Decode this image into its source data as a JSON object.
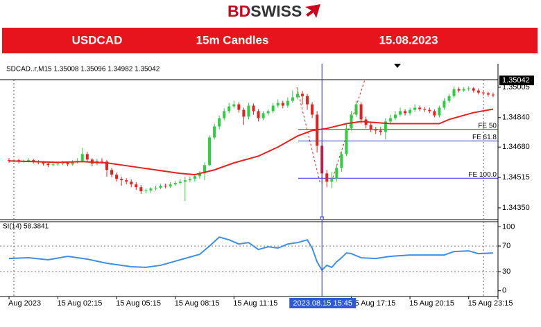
{
  "header": {
    "logo_part1": "BD",
    "logo_part2": "SWISS",
    "symbol": "USDCAD",
    "timeframe": "15m Candles",
    "date": "15.08.2023"
  },
  "chart_data": [
    {
      "type": "candlestick",
      "info": "SDCAD..r,M15  1.35008 1.35096 1.34982 1.35042",
      "up_color": "#2ecc40",
      "down_color": "#e8201c",
      "open": [
        1.34609,
        1.34605,
        1.34609,
        1.34601,
        1.34605,
        1.34609,
        1.34601,
        1.34597,
        1.3459,
        1.34582,
        1.34586,
        1.3459,
        1.34594,
        1.34586,
        1.34597,
        1.34605,
        1.34642,
        1.34612,
        1.3459,
        1.34605,
        1.34601,
        1.34556,
        1.3453,
        1.34507,
        1.345,
        1.34492,
        1.34477,
        1.34462,
        1.3444,
        1.34444,
        1.34455,
        1.34459,
        1.3447,
        1.34466,
        1.34477,
        1.34485,
        1.34492,
        1.345,
        1.34507,
        1.34522,
        1.34537,
        1.34582,
        1.34732,
        1.34792,
        1.34837,
        1.34875,
        1.34901,
        1.34912,
        1.34882,
        1.34845,
        1.34905,
        1.34875,
        1.34837,
        1.34864,
        1.34875,
        1.34905,
        1.3492,
        1.34905,
        1.34931,
        1.3495,
        1.34969,
        1.34957,
        1.34912,
        1.34856,
        1.34687,
        1.34537,
        1.34492,
        1.34507,
        1.34567,
        1.34642,
        1.34781,
        1.34856,
        1.34912,
        1.3483,
        1.348,
        1.34777,
        1.3477,
        1.34762,
        1.34819,
        1.34837,
        1.34856,
        1.34875,
        1.34864,
        1.34882,
        1.34894,
        1.34886,
        1.34882,
        1.34875,
        1.34852,
        1.34894,
        1.34931,
        1.34957,
        1.34995,
        1.34987,
        1.34995,
        1.34999,
        1.34987,
        1.34976,
        1.34972,
        1.34965
      ],
      "high": [
        1.3462,
        1.34616,
        1.34616,
        1.34612,
        1.3462,
        1.34616,
        1.34609,
        1.34605,
        1.34597,
        1.34594,
        1.34601,
        1.34605,
        1.34601,
        1.34609,
        1.3462,
        1.34676,
        1.34654,
        1.3462,
        1.34616,
        1.3462,
        1.34609,
        1.34567,
        1.34541,
        1.34519,
        1.34511,
        1.34504,
        1.34489,
        1.34474,
        1.34455,
        1.34462,
        1.3447,
        1.34481,
        1.34481,
        1.34489,
        1.34496,
        1.34507,
        1.34519,
        1.34519,
        1.34534,
        1.34549,
        1.34597,
        1.34744,
        1.34807,
        1.34852,
        1.3489,
        1.3492,
        1.34931,
        1.34924,
        1.34894,
        1.3492,
        1.34916,
        1.34886,
        1.34875,
        1.34886,
        1.3492,
        1.34939,
        1.34931,
        1.3495,
        1.34987,
        1.34999,
        1.34984,
        1.34969,
        1.34924,
        1.34875,
        1.34706,
        1.34556,
        1.34545,
        1.34582,
        1.34657,
        1.34807,
        1.34875,
        1.34931,
        1.34924,
        1.34845,
        1.34815,
        1.34789,
        1.34789,
        1.34837,
        1.34856,
        1.34875,
        1.34894,
        1.34886,
        1.34894,
        1.34912,
        1.34905,
        1.34897,
        1.34894,
        1.34886,
        1.34905,
        1.34946,
        1.34969,
        1.3501,
        1.35006,
        1.35006,
        1.3501,
        1.35006,
        1.34999,
        1.34984,
        1.3498,
        1.34976
      ],
      "low": [
        1.34594,
        1.34597,
        1.3459,
        1.34594,
        1.34597,
        1.3459,
        1.34586,
        1.34579,
        1.34571,
        1.34575,
        1.34579,
        1.34582,
        1.34575,
        1.34579,
        1.3459,
        1.34597,
        1.34601,
        1.34575,
        1.34582,
        1.3459,
        1.34519,
        1.34515,
        1.34492,
        1.3447,
        1.34477,
        1.34462,
        1.34447,
        1.34425,
        1.34429,
        1.34432,
        1.34444,
        1.34451,
        1.34455,
        1.34459,
        1.3447,
        1.34477,
        1.34387,
        1.34489,
        1.34492,
        1.34507,
        1.345,
        1.34575,
        1.34721,
        1.34777,
        1.34826,
        1.34864,
        1.3489,
        1.34867,
        1.348,
        1.3483,
        1.34856,
        1.34819,
        1.34826,
        1.34852,
        1.34864,
        1.34894,
        1.3489,
        1.34894,
        1.3492,
        1.34939,
        1.34912,
        1.34882,
        1.34837,
        1.3465,
        1.34481,
        1.34462,
        1.34455,
        1.34492,
        1.34545,
        1.34631,
        1.3477,
        1.34845,
        1.34807,
        1.34781,
        1.34762,
        1.34751,
        1.34744,
        1.34721,
        1.34807,
        1.34826,
        1.34845,
        1.34852,
        1.34852,
        1.34871,
        1.34875,
        1.34871,
        1.34864,
        1.34841,
        1.34841,
        1.34882,
        1.3492,
        1.34946,
        1.34976,
        1.3498,
        1.34984,
        1.34976,
        1.34965,
        1.34961,
        1.34954,
        1.3495
      ],
      "close": [
        1.34605,
        1.34609,
        1.34601,
        1.34605,
        1.34609,
        1.34601,
        1.34597,
        1.3459,
        1.34582,
        1.34586,
        1.3459,
        1.34594,
        1.34586,
        1.34597,
        1.34605,
        1.34642,
        1.34612,
        1.3459,
        1.34605,
        1.34601,
        1.34556,
        1.3453,
        1.34507,
        1.345,
        1.34492,
        1.34477,
        1.34462,
        1.3444,
        1.34444,
        1.34455,
        1.34459,
        1.3447,
        1.34466,
        1.34477,
        1.34485,
        1.34492,
        1.345,
        1.34507,
        1.34522,
        1.34537,
        1.34582,
        1.34732,
        1.34792,
        1.34837,
        1.34875,
        1.34901,
        1.34912,
        1.34882,
        1.34845,
        1.34905,
        1.34875,
        1.34837,
        1.34864,
        1.34875,
        1.34905,
        1.3492,
        1.34905,
        1.34931,
        1.3495,
        1.34969,
        1.34957,
        1.34912,
        1.34856,
        1.34687,
        1.34537,
        1.34492,
        1.34507,
        1.34567,
        1.34642,
        1.34781,
        1.34856,
        1.34912,
        1.3483,
        1.348,
        1.34777,
        1.3477,
        1.34762,
        1.34819,
        1.34837,
        1.34856,
        1.34875,
        1.34864,
        1.34882,
        1.34894,
        1.34886,
        1.34882,
        1.34875,
        1.34852,
        1.34894,
        1.34931,
        1.34957,
        1.34995,
        1.34987,
        1.34995,
        1.34999,
        1.34987,
        1.34976,
        1.34972,
        1.34965,
        1.34961
      ],
      "ma": {
        "color": "#e8201c",
        "x": [
          0,
          5,
          10,
          15,
          20,
          25,
          30,
          35,
          38,
          42,
          46,
          51,
          55,
          59,
          62,
          65,
          69,
          72,
          78,
          83,
          88,
          90,
          95,
          99
        ],
        "values": [
          1.34605,
          1.34601,
          1.34597,
          1.34601,
          1.34594,
          1.34575,
          1.34556,
          1.34537,
          1.3453,
          1.34556,
          1.34594,
          1.34631,
          1.3468,
          1.3474,
          1.3477,
          1.34781,
          1.34807,
          1.34819,
          1.34807,
          1.34807,
          1.34807,
          1.3483,
          1.34867,
          1.34886
        ]
      },
      "levels": [
        {
          "label": "FE 50",
          "value": 1.34776
        },
        {
          "label": "FE 61.8",
          "value": 1.34713
        },
        {
          "label": "FE 100.0",
          "value": 1.34511
        }
      ],
      "level_color": "#2b2bdc",
      "current_price": 1.35042,
      "ylim": [
        1.34286,
        1.35046
      ],
      "yticks": [
        1.35005,
        {
          "value": 1.3484,
          "label": "1.34840"
        },
        {
          "value": 1.3468,
          "label": "1.34680"
        },
        1.34515,
        {
          "value": 1.3435,
          "label": "1.34350"
        }
      ],
      "xticks": [
        {
          "value": 0,
          "label": "Aug 2023"
        },
        {
          "value": 10,
          "label": "15 Aug 02:15"
        },
        {
          "value": 22,
          "label": "15 Aug 05:15"
        },
        {
          "value": 34,
          "label": "15 Aug 08:15"
        },
        {
          "value": 46,
          "label": "15 Aug 11:15"
        },
        {
          "value": 70,
          "label": "15 Aug 17:15"
        },
        {
          "value": 82,
          "label": "15 Aug 20:15"
        },
        {
          "value": 94,
          "label": "15 Aug 23:15"
        }
      ],
      "crosshair": {
        "x": 64,
        "label": "2023.08.15 15:45"
      }
    },
    {
      "type": "line",
      "label": "SI(14) 58.3841",
      "color": "#3b8fe8",
      "x": [
        0,
        4,
        8,
        12,
        16,
        20,
        25,
        28,
        31,
        35,
        39,
        41,
        43,
        45,
        47,
        49,
        51,
        53,
        55,
        57,
        59,
        61,
        62,
        63,
        64,
        65,
        66,
        67,
        68,
        69,
        70,
        72,
        75,
        78,
        82,
        86,
        89,
        91,
        94,
        96,
        99
      ],
      "values": [
        50.5,
        51.6,
        48.4,
        53.8,
        49.5,
        43.0,
        37.6,
        36.6,
        39.8,
        48.4,
        57.0,
        69.9,
        83.9,
        79.6,
        73.1,
        75.3,
        64.5,
        68.8,
        66.7,
        73.1,
        75.3,
        79.6,
        66.7,
        45.2,
        32.3,
        39.8,
        36.6,
        45.2,
        51.6,
        59.1,
        58.1,
        51.6,
        50.5,
        53.8,
        55.9,
        55.9,
        55.9,
        61.3,
        62.4,
        58.1,
        59.1
      ],
      "ylim": [
        -9,
        108
      ],
      "yticks": [
        100,
        70,
        30,
        0
      ],
      "levels": [
        70,
        30
      ]
    }
  ]
}
